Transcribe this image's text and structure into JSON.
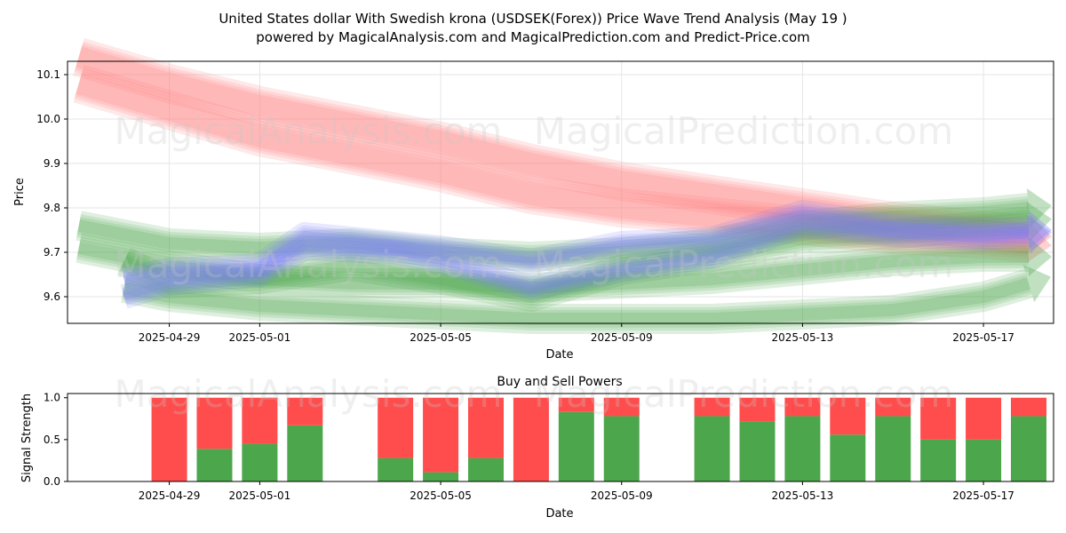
{
  "figure": {
    "title_line1": "United States dollar With Swedish krona (USDSEK(Forex)) Price Wave Trend Analysis (May 19 )",
    "title_line2": "powered by MagicalAnalysis.com and MagicalPrediction.com and Predict-Price.com",
    "watermark_left": "MagicalAnalysis.com",
    "watermark_right": "MagicalPrediction.com"
  },
  "chart_data": [
    {
      "type": "line",
      "xlabel": "Date",
      "ylabel": "Price",
      "ylim": [
        9.54,
        10.13
      ],
      "yticks": [
        9.6,
        9.7,
        9.8,
        9.9,
        10.0,
        10.1
      ],
      "xtick_labels": [
        "2025-04-29",
        "2025-05-01",
        "2025-05-05",
        "2025-05-09",
        "2025-05-13",
        "2025-05-17"
      ],
      "grid": true,
      "colors": {
        "red": "#ff7f7f",
        "green": "#4ca64c",
        "blue": "#7f7fff"
      },
      "bands": [
        {
          "color": "red",
          "points": [
            [
              "2025-04-27",
              10.08
            ],
            [
              "2025-04-29",
              10.02
            ],
            [
              "2025-05-01",
              9.96
            ],
            [
              "2025-05-03",
              9.92
            ],
            [
              "2025-05-05",
              9.88
            ],
            [
              "2025-05-07",
              9.83
            ],
            [
              "2025-05-09",
              9.8
            ],
            [
              "2025-05-11",
              9.78
            ],
            [
              "2025-05-13",
              9.76
            ],
            [
              "2025-05-15",
              9.74
            ],
            [
              "2025-05-17",
              9.73
            ],
            [
              "2025-05-18",
              9.72
            ]
          ]
        },
        {
          "color": "red",
          "points": [
            [
              "2025-04-27",
              10.14
            ],
            [
              "2025-04-29",
              10.08
            ],
            [
              "2025-05-01",
              10.03
            ],
            [
              "2025-05-03",
              9.99
            ],
            [
              "2025-05-05",
              9.95
            ],
            [
              "2025-05-07",
              9.9
            ],
            [
              "2025-05-09",
              9.86
            ],
            [
              "2025-05-11",
              9.83
            ],
            [
              "2025-05-13",
              9.8
            ],
            [
              "2025-05-15",
              9.77
            ],
            [
              "2025-05-17",
              9.75
            ],
            [
              "2025-05-18",
              9.74
            ]
          ]
        },
        {
          "color": "green",
          "points": [
            [
              "2025-04-27",
              9.71
            ],
            [
              "2025-04-29",
              9.67
            ],
            [
              "2025-05-01",
              9.64
            ],
            [
              "2025-05-03",
              9.63
            ],
            [
              "2025-05-05",
              9.63
            ],
            [
              "2025-05-07",
              9.62
            ],
            [
              "2025-05-09",
              9.63
            ],
            [
              "2025-05-11",
              9.64
            ],
            [
              "2025-05-13",
              9.66
            ],
            [
              "2025-05-15",
              9.68
            ],
            [
              "2025-05-17",
              9.69
            ],
            [
              "2025-05-18",
              9.69
            ]
          ]
        },
        {
          "color": "green",
          "points": [
            [
              "2025-04-28",
              9.62
            ],
            [
              "2025-04-29",
              9.6
            ],
            [
              "2025-05-01",
              9.58
            ],
            [
              "2025-05-03",
              9.57
            ],
            [
              "2025-05-05",
              9.56
            ],
            [
              "2025-05-07",
              9.55
            ],
            [
              "2025-05-09",
              9.55
            ],
            [
              "2025-05-11",
              9.55
            ],
            [
              "2025-05-13",
              9.56
            ],
            [
              "2025-05-15",
              9.57
            ],
            [
              "2025-05-17",
              9.6
            ],
            [
              "2025-05-18",
              9.63
            ]
          ]
        },
        {
          "color": "green",
          "points": [
            [
              "2025-04-27",
              9.76
            ],
            [
              "2025-04-29",
              9.72
            ],
            [
              "2025-05-01",
              9.71
            ],
            [
              "2025-05-03",
              9.72
            ],
            [
              "2025-05-05",
              9.7
            ],
            [
              "2025-05-07",
              9.69
            ],
            [
              "2025-05-09",
              9.7
            ],
            [
              "2025-05-11",
              9.72
            ],
            [
              "2025-05-13",
              9.76
            ],
            [
              "2025-05-15",
              9.78
            ],
            [
              "2025-05-17",
              9.79
            ],
            [
              "2025-05-18",
              9.8
            ]
          ]
        },
        {
          "color": "green",
          "points": [
            [
              "2025-04-28",
              9.68
            ],
            [
              "2025-04-29",
              9.63
            ],
            [
              "2025-05-01",
              9.64
            ],
            [
              "2025-05-03",
              9.67
            ],
            [
              "2025-05-05",
              9.64
            ],
            [
              "2025-05-07",
              9.6
            ],
            [
              "2025-05-09",
              9.66
            ],
            [
              "2025-05-11",
              9.69
            ],
            [
              "2025-05-13",
              9.73
            ],
            [
              "2025-05-15",
              9.74
            ],
            [
              "2025-05-17",
              9.76
            ],
            [
              "2025-05-18",
              9.77
            ]
          ]
        },
        {
          "color": "blue",
          "points": [
            [
              "2025-04-28",
              9.64
            ],
            [
              "2025-04-29",
              9.66
            ],
            [
              "2025-05-01",
              9.67
            ],
            [
              "2025-05-02",
              9.74
            ],
            [
              "2025-05-04",
              9.72
            ],
            [
              "2025-05-05",
              9.71
            ],
            [
              "2025-05-07",
              9.68
            ],
            [
              "2025-05-09",
              9.72
            ],
            [
              "2025-05-11",
              9.73
            ],
            [
              "2025-05-13",
              9.79
            ],
            [
              "2025-05-15",
              9.76
            ],
            [
              "2025-05-17",
              9.75
            ],
            [
              "2025-05-18",
              9.75
            ]
          ]
        },
        {
          "color": "blue",
          "points": [
            [
              "2025-04-28",
              9.6
            ],
            [
              "2025-04-29",
              9.63
            ],
            [
              "2025-05-01",
              9.65
            ],
            [
              "2025-05-02",
              9.71
            ],
            [
              "2025-05-04",
              9.7
            ],
            [
              "2025-05-05",
              9.68
            ],
            [
              "2025-05-07",
              9.62
            ],
            [
              "2025-05-09",
              9.66
            ],
            [
              "2025-05-11",
              9.69
            ],
            [
              "2025-05-13",
              9.76
            ],
            [
              "2025-05-15",
              9.74
            ],
            [
              "2025-05-17",
              9.73
            ],
            [
              "2025-05-18",
              9.74
            ]
          ]
        }
      ]
    },
    {
      "type": "bar",
      "title": "Buy and Sell Powers",
      "xlabel": "Date",
      "ylabel": "Signal Strength",
      "ylim": [
        0,
        1.05
      ],
      "yticks": [
        0.0,
        0.5,
        1.0
      ],
      "xtick_labels": [
        "2025-04-29",
        "2025-05-01",
        "2025-05-05",
        "2025-05-09",
        "2025-05-13",
        "2025-05-17"
      ],
      "colors": {
        "buy": "#4ca64c",
        "sell": "#ff4c4c"
      },
      "categories": [
        "2025-04-29",
        "2025-04-30",
        "2025-05-01",
        "2025-05-02",
        "2025-05-04",
        "2025-05-05",
        "2025-05-06",
        "2025-05-07",
        "2025-05-08",
        "2025-05-09",
        "2025-05-11",
        "2025-05-12",
        "2025-05-13",
        "2025-05-14",
        "2025-05-15",
        "2025-05-16",
        "2025-05-17",
        "2025-05-18"
      ],
      "buy": [
        0.0,
        0.39,
        0.45,
        0.67,
        0.28,
        0.11,
        0.28,
        0.0,
        0.83,
        0.78,
        0.78,
        0.72,
        0.78,
        0.56,
        0.78,
        0.5,
        0.5,
        0.78
      ],
      "sell": [
        1.0,
        0.61,
        0.55,
        0.33,
        0.72,
        0.89,
        0.72,
        1.0,
        0.17,
        0.22,
        0.22,
        0.28,
        0.22,
        0.44,
        0.22,
        0.5,
        0.5,
        0.22
      ]
    }
  ]
}
